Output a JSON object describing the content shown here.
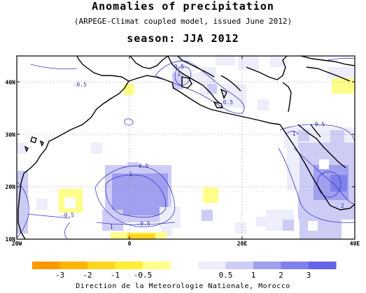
{
  "title": "Anomalies of precipitation",
  "subtitle": "(ARPEGE-Climat coupled model, issued June 2012)",
  "season": "season: JJA 2012",
  "credit": "Direction de la Meteorologie Nationale, Morocco",
  "map": {
    "lon_range": [
      -20,
      40
    ],
    "lat_range": [
      10,
      45
    ],
    "x_ticks": [
      {
        "lon": -20,
        "label": "20W"
      },
      {
        "lon": 0,
        "label": "0"
      },
      {
        "lon": 20,
        "label": "20E"
      },
      {
        "lon": 40,
        "label": "40E"
      }
    ],
    "y_ticks": [
      {
        "lat": 40,
        "label": "40N"
      },
      {
        "lat": 30,
        "label": "30N"
      },
      {
        "lat": 20,
        "label": "20N"
      },
      {
        "lat": 10,
        "label": "10N"
      }
    ],
    "contour_labels": [
      {
        "lon": -8.8,
        "lat": 39.2,
        "label": "-0.5"
      },
      {
        "lon": 8.8,
        "lat": 42.6,
        "label": "0.5"
      },
      {
        "lon": 8.8,
        "lat": 41.2,
        "label": "1"
      },
      {
        "lon": 17.5,
        "lat": 35.8,
        "label": "0.5"
      },
      {
        "lon": 33.8,
        "lat": 31.6,
        "label": "0.5"
      },
      {
        "lon": 29.2,
        "lat": 29.8,
        "label": "1"
      },
      {
        "lon": 2.5,
        "lat": 23.6,
        "label": "0.5"
      },
      {
        "lon": 0.2,
        "lat": 22.0,
        "label": "1"
      },
      {
        "lon": -11.0,
        "lat": 14.2,
        "label": "-0.5"
      },
      {
        "lon": -3.2,
        "lat": 12.0,
        "label": "1"
      },
      {
        "lon": 2.5,
        "lat": 12.6,
        "label": "-0.5"
      },
      {
        "lon": 37.8,
        "lat": 16.0,
        "label": "2"
      }
    ]
  },
  "legend": {
    "items": [
      {
        "label": "-3",
        "color": "#ff9900"
      },
      {
        "label": "-2",
        "color": "#ffb400"
      },
      {
        "label": "-1",
        "color": "#ffd61f"
      },
      {
        "label": "-0.5",
        "color": "#ffee33"
      },
      {
        "label": "",
        "color": "#ffff8a"
      },
      {
        "label": "",
        "color": "#ffffff"
      },
      {
        "label": "0.5",
        "color": "#ededfb"
      },
      {
        "label": "1",
        "color": "#ccccf5"
      },
      {
        "label": "2",
        "color": "#a0a0f0"
      },
      {
        "label": "3",
        "color": "#8080ec"
      },
      {
        "label": "",
        "color": "#6464e6"
      }
    ]
  }
}
